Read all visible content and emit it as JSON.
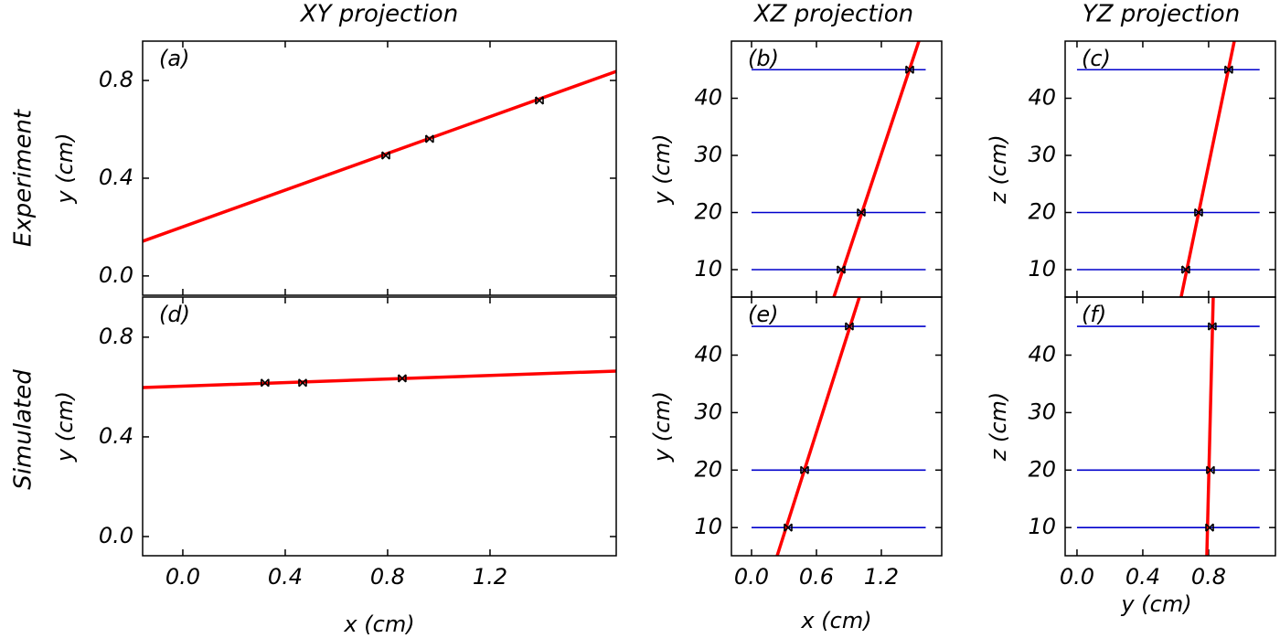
{
  "column_titles": [
    "XY projection",
    "XZ projection",
    "YZ projection"
  ],
  "row_labels": [
    "Experiment",
    "Simulated"
  ],
  "chart_data": [
    {
      "type": "line",
      "label": "(a)",
      "ylabel": "y (cm)",
      "xlim": [
        -0.157,
        1.693
      ],
      "ylim": [
        -0.079,
        0.961
      ],
      "yticks": [
        {
          "value": 0,
          "label": "0.0"
        },
        0.4,
        0.8
      ],
      "fit": {
        "color": "#ff0000",
        "x": [
          -0.157,
          1.693
        ],
        "y": [
          0.142,
          0.837
        ]
      },
      "hits": {
        "color": "#000000",
        "x": [
          0.793,
          0.964,
          1.393
        ],
        "y": [
          0.493,
          0.561,
          0.718
        ]
      }
    },
    {
      "type": "line",
      "label": "(b)",
      "ylabel": "y (cm)",
      "xlim": [
        -0.186,
        1.758
      ],
      "ylim": [
        5.2,
        50
      ],
      "yticks": [
        10,
        20,
        30,
        40
      ],
      "planes": {
        "color": "#0000cc",
        "z": [
          10,
          20,
          45
        ],
        "x_range": [
          0,
          1.61
        ]
      },
      "fit": {
        "color": "#ff0000",
        "x": [
          0.761,
          1.547
        ],
        "y": [
          5.2,
          50
        ]
      },
      "hits": {
        "color": "#000000",
        "x": [
          0.828,
          1.014,
          1.462
        ],
        "y": [
          10,
          20,
          45
        ]
      }
    },
    {
      "type": "line",
      "label": "(c)",
      "ylabel": "z (cm)",
      "xlim": [
        -0.072,
        1.206
      ],
      "ylim": [
        5.2,
        50
      ],
      "yticks": [
        10,
        20,
        30,
        40
      ],
      "planes": {
        "color": "#0000cc",
        "z": [
          10,
          20,
          45
        ],
        "x_range": [
          0,
          1.11
        ]
      },
      "fit": {
        "color": "#ff0000",
        "x": [
          0.633,
          0.956
        ],
        "y": [
          5.2,
          50
        ]
      },
      "hits": {
        "color": "#000000",
        "x": [
          0.661,
          0.739,
          0.922
        ],
        "y": [
          10,
          20,
          45
        ]
      }
    },
    {
      "type": "line",
      "label": "(d)",
      "ylabel": "y (cm)",
      "xlabel": "x (cm)",
      "xlim": [
        -0.157,
        1.693
      ],
      "ylim": [
        -0.077,
        0.961
      ],
      "xticks": [
        {
          "value": 0,
          "label": "0.0"
        },
        0.4,
        0.8,
        1.2
      ],
      "yticks": [
        {
          "value": 0,
          "label": "0.0"
        },
        0.4,
        0.8
      ],
      "fit": {
        "color": "#ff0000",
        "x": [
          -0.157,
          1.693
        ],
        "y": [
          0.598,
          0.664
        ]
      },
      "hits": {
        "color": "#000000",
        "x": [
          0.321,
          0.468,
          0.857
        ],
        "y": [
          0.617,
          0.617,
          0.635
        ]
      }
    },
    {
      "type": "line",
      "label": "(e)",
      "ylabel": "y (cm)",
      "xlabel": "x (cm)",
      "xlim": [
        -0.186,
        1.758
      ],
      "ylim": [
        5.1,
        50.1
      ],
      "xticks": [
        {
          "value": 0,
          "label": "0.0"
        },
        0.6,
        1.2
      ],
      "yticks": [
        10,
        20,
        30,
        40
      ],
      "planes": {
        "color": "#0000cc",
        "z": [
          10,
          20,
          45
        ],
        "x_range": [
          0,
          1.61
        ]
      },
      "fit": {
        "color": "#ff0000",
        "x": [
          0.237,
          0.997
        ],
        "y": [
          5.1,
          50.1
        ]
      },
      "hits": {
        "color": "#000000",
        "x": [
          0.338,
          0.49,
          0.904
        ],
        "y": [
          10,
          20,
          45
        ]
      }
    },
    {
      "type": "line",
      "label": "(f)",
      "ylabel": "z (cm)",
      "xlabel": "y (cm)",
      "xlim": [
        -0.072,
        1.206
      ],
      "ylim": [
        5.1,
        50.1
      ],
      "xticks": [
        {
          "value": 0,
          "label": "0.0"
        },
        0.4,
        0.8
      ],
      "yticks": [
        10,
        20,
        30,
        40
      ],
      "planes": {
        "color": "#0000cc",
        "z": [
          10,
          20,
          45
        ],
        "x_range": [
          0,
          1.11
        ]
      },
      "fit": {
        "color": "#ff0000",
        "x": [
          0.789,
          0.828
        ],
        "y": [
          5.1,
          50.1
        ]
      },
      "hits": {
        "color": "#000000",
        "x": [
          0.806,
          0.811,
          0.822
        ],
        "y": [
          10,
          20,
          45
        ]
      }
    }
  ]
}
